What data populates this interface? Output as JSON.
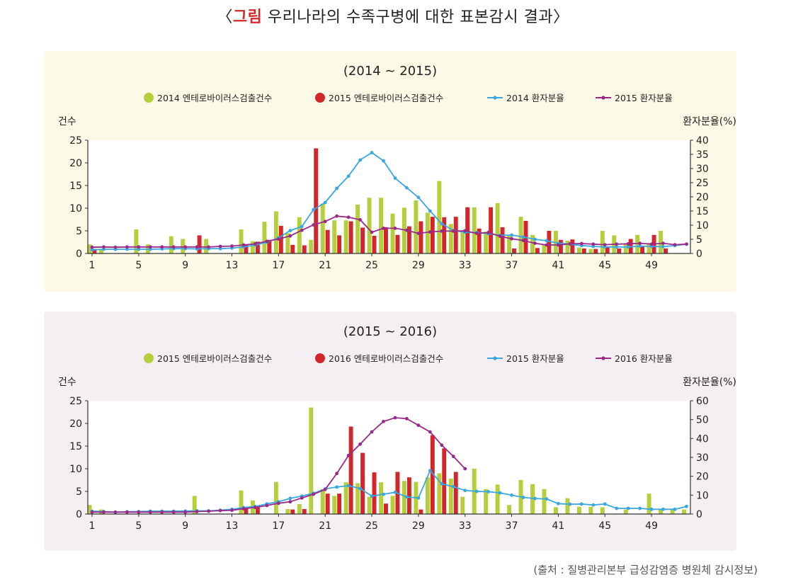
{
  "title": {
    "open": "〈",
    "label": "그림",
    "text": " 우리나라의 수족구병에 대한 표본감시 결과",
    "close": "〉"
  },
  "source": "(출처 : 질병관리본부 급성감염증 병원체 감시정보)",
  "colors": {
    "green_bar": "#b5cf3c",
    "red_bar": "#d3262a",
    "blue_line": "#3aa7e0",
    "purple_line": "#9a2a8a"
  },
  "chart_data": [
    {
      "type": "bar+line",
      "title": "(2014 ~ 2015)",
      "y_left_label": "건수",
      "y_right_label": "환자분율(%)",
      "ylim_left": [
        0,
        25
      ],
      "ylim_right": [
        0,
        40
      ],
      "yticks_left": [
        "0",
        "5",
        "10",
        "15",
        "20",
        "25"
      ],
      "yticks_right": [
        "0",
        "5",
        "10",
        "15",
        "20",
        "25",
        "30",
        "35",
        "40"
      ],
      "xticks": [
        "1",
        "5",
        "9",
        "13",
        "17",
        "21",
        "25",
        "29",
        "33",
        "37",
        "41",
        "45",
        "49"
      ],
      "x": [
        1,
        2,
        3,
        4,
        5,
        6,
        7,
        8,
        9,
        10,
        11,
        12,
        13,
        14,
        15,
        16,
        17,
        18,
        19,
        20,
        21,
        22,
        23,
        24,
        25,
        26,
        27,
        28,
        29,
        30,
        31,
        32,
        33,
        34,
        35,
        36,
        37,
        38,
        39,
        40,
        41,
        42,
        43,
        44,
        45,
        46,
        47,
        48,
        49,
        50,
        51,
        52
      ],
      "legend": [
        "2014 엔테로바이러스검출건수",
        "2015 엔테로바이러스검출건수",
        "2014 환자분율",
        "2015 환자분율"
      ],
      "bars": [
        {
          "name": "2014 엔테로바이러스검출건수",
          "values": [
            2,
            1,
            0,
            0,
            5.3,
            2,
            0,
            3.8,
            3.2,
            0,
            3.2,
            0,
            0,
            5.3,
            2.7,
            7,
            9.3,
            4.5,
            8,
            3,
            11,
            7.3,
            7.3,
            10.8,
            12.3,
            12.3,
            8.8,
            10.1,
            11.7,
            9,
            16,
            6.5,
            4.8,
            10.2,
            4.8,
            11.1,
            4,
            8.1,
            4.1,
            2,
            5,
            2.8,
            1.3,
            1,
            5,
            4,
            2.3,
            4.1,
            2.3,
            5,
            0,
            0
          ]
        },
        {
          "name": "2015 엔테로바이러스검출건수",
          "values": [
            1,
            0,
            0,
            0,
            0,
            0,
            0,
            0,
            0,
            4,
            0,
            0,
            0,
            2,
            2.6,
            3,
            6.1,
            1.9,
            1.8,
            23.2,
            5.2,
            4,
            7.1,
            5.7,
            3.9,
            5.8,
            4.1,
            6,
            7.1,
            8.1,
            8,
            8.1,
            10.2,
            5.5,
            10.2,
            5.8,
            1.1,
            7.2,
            1.2,
            5,
            3,
            3.1,
            1.1,
            1,
            1.5,
            1.1,
            3.2,
            1.5,
            4.1,
            1.1,
            0,
            0
          ]
        }
      ],
      "lines": [
        {
          "name": "2014 환자분율",
          "values": [
            1.3,
            1.5,
            1.5,
            1.5,
            1.5,
            1.5,
            1.6,
            1.7,
            1.7,
            1.6,
            1.7,
            1.7,
            1.9,
            2.3,
            3,
            4,
            5.5,
            8.1,
            9.5,
            15.5,
            18,
            23,
            27.3,
            33,
            35.6,
            32.7,
            26.6,
            23.2,
            19.8,
            15,
            10.5,
            8.1,
            7.5,
            7.4,
            7,
            6.4,
            6.5,
            5.8,
            5,
            4.5,
            3.6,
            3.3,
            2.8,
            2.5,
            2.3,
            2.3,
            2.3,
            2.6,
            2.5,
            2.4,
            2.8,
            3.3
          ]
        },
        {
          "name": "2015 환자분율",
          "values": [
            2.2,
            2.3,
            2.2,
            2.3,
            2.3,
            2.3,
            2.3,
            2.3,
            2.3,
            2.3,
            2.3,
            2.5,
            2.6,
            3,
            3.4,
            4.3,
            5.1,
            6.2,
            8.2,
            10.1,
            11.3,
            13.2,
            12.8,
            11.9,
            7.5,
            8.9,
            8.9,
            8.2,
            7.1,
            7.6,
            7.9,
            7.9,
            8,
            7.1,
            7.4,
            6.1,
            5.2,
            4.6,
            3.6,
            3,
            3,
            3.4,
            3.5,
            3.3,
            3.1,
            3.3,
            3.4,
            3.6,
            3.3,
            3.6,
            3.1,
            3.3
          ]
        }
      ]
    },
    {
      "type": "bar+line",
      "title": "(2015 ~ 2016)",
      "y_left_label": "건수",
      "y_right_label": "환자분율(%)",
      "ylim_left": [
        0,
        25
      ],
      "ylim_right": [
        0,
        60
      ],
      "yticks_left": [
        "0",
        "5",
        "10",
        "15",
        "20",
        "25"
      ],
      "yticks_right": [
        "0",
        "10",
        "20",
        "30",
        "40",
        "50",
        "60"
      ],
      "xticks": [
        "1",
        "5",
        "9",
        "13",
        "17",
        "21",
        "25",
        "29",
        "33",
        "37",
        "41",
        "45",
        "49"
      ],
      "x": [
        1,
        2,
        3,
        4,
        5,
        6,
        7,
        8,
        9,
        10,
        11,
        12,
        13,
        14,
        15,
        16,
        17,
        18,
        19,
        20,
        21,
        22,
        23,
        24,
        25,
        26,
        27,
        28,
        29,
        30,
        31,
        32,
        33,
        34,
        35,
        36,
        37,
        38,
        39,
        40,
        41,
        42,
        43,
        44,
        45,
        46,
        47,
        48,
        49,
        50,
        51,
        52
      ],
      "legend": [
        "2015 엔테로바이러스검출건수",
        "2016 엔테로바이러스검출건수",
        "2015 환자분율",
        "2016 환자분율"
      ],
      "bars": [
        {
          "name": "2015 엔테로바이러스검출건수",
          "values": [
            2,
            1,
            0,
            0,
            0,
            0,
            0,
            0,
            0,
            4,
            0,
            0,
            0,
            5.2,
            3,
            0,
            7.1,
            1.1,
            2.2,
            23.5,
            5.5,
            4,
            7,
            6.8,
            3.8,
            7,
            4,
            7.3,
            7.1,
            8.1,
            9,
            7.8,
            3.8,
            10,
            5.5,
            6.5,
            2,
            7.5,
            6.6,
            5.5,
            1.5,
            3.5,
            1.6,
            1.6,
            1.5,
            0,
            1,
            0,
            4.5,
            1,
            1,
            1
          ]
        },
        {
          "name": "2016 엔테로바이러스검출건수",
          "values": [
            0,
            0,
            0,
            0,
            0,
            0,
            0,
            0,
            0,
            0,
            0,
            0,
            0,
            1.2,
            1.5,
            0,
            0,
            1,
            1.1,
            0,
            4.5,
            4.5,
            19.3,
            13.5,
            9.2,
            2.3,
            9.3,
            8.1,
            1,
            17.4,
            14.5,
            9.3,
            0,
            0,
            0,
            0,
            0,
            0,
            0,
            0,
            0,
            0,
            0,
            0,
            0,
            0,
            0,
            0,
            0,
            0,
            0,
            0
          ]
        }
      ],
      "lines": [
        {
          "name": "2015 환자분율",
          "values": [
            1.5,
            1.3,
            1,
            1.2,
            1.3,
            1.5,
            1.5,
            1.5,
            1.6,
            1.7,
            1.7,
            2,
            2.5,
            3.4,
            4,
            5.4,
            6.5,
            8.3,
            9.5,
            11,
            13.3,
            14.3,
            15,
            13.5,
            9.5,
            10.5,
            11.5,
            9,
            8.5,
            23,
            16,
            14.5,
            12.5,
            12,
            11.8,
            11.2,
            10,
            8.8,
            8.2,
            8,
            5.5,
            5.2,
            5.3,
            4.8,
            5.3,
            3,
            3,
            3,
            2.5,
            2.5,
            2.5,
            4
          ]
        },
        {
          "name": "2016 환자분율",
          "values": [
            1,
            1,
            1,
            1,
            1,
            1,
            1,
            1,
            1,
            1.3,
            1.5,
            1.8,
            2,
            2.8,
            3.5,
            4.5,
            5.7,
            6.5,
            8.5,
            10.5,
            13,
            21.5,
            31,
            37,
            43.5,
            49,
            51,
            50.5,
            47,
            43.5,
            36.5,
            30.5,
            24,
            null,
            null,
            null,
            null,
            null,
            null,
            null,
            null,
            null,
            null,
            null,
            null,
            null,
            null,
            null,
            null,
            null,
            null,
            null
          ]
        }
      ]
    }
  ]
}
